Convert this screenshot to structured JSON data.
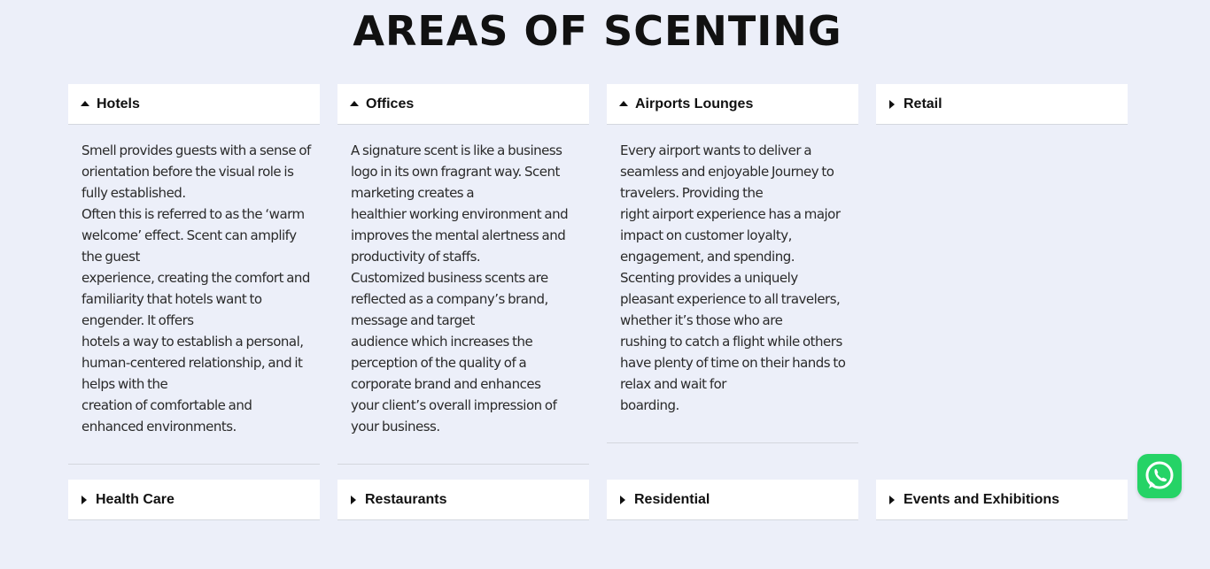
{
  "page": {
    "title": "AREAS OF SCENTING"
  },
  "tabs": [
    {
      "label": "Hotels",
      "expanded": true,
      "paragraphs": [
        "Smell provides guests with a sense of orientation before the visual role is fully established.",
        "Often this is referred to as the ‘warm welcome’ effect. Scent can amplify the guest",
        "experience, creating the comfort and familiarity that hotels want to engender. It offers",
        "hotels a way to establish a personal, human-centered relationship, and it helps with the",
        "creation of comfortable and enhanced environments."
      ]
    },
    {
      "label": "Offices",
      "expanded": true,
      "paragraphs": [
        "A signature scent is like a business logo in its own fragrant way. Scent marketing creates a",
        "healthier working environment and improves the mental alertness and productivity of staffs.",
        "Customized business scents are reflected as a company’s brand, message and target",
        "audience which increases the perception of the quality of a corporate brand and enhances",
        "your client’s overall impression of your business."
      ]
    },
    {
      "label": "Airports Lounges",
      "expanded": true,
      "paragraphs": [
        "Every airport wants to deliver a seamless and enjoyable Journey to travelers. Providing the",
        "right airport experience has a major impact on customer loyalty, engagement, and spending.",
        "Scenting provides a uniquely pleasant experience to all travelers, whether it’s those who are",
        "rushing to catch a flight while others have plenty of time on their hands to relax and wait for",
        "boarding."
      ]
    },
    {
      "label": "Retail",
      "expanded": false,
      "paragraphs": []
    },
    {
      "label": "Health Care",
      "expanded": false,
      "paragraphs": []
    },
    {
      "label": "Restaurants",
      "expanded": false,
      "paragraphs": []
    },
    {
      "label": "Residential",
      "expanded": false,
      "paragraphs": []
    },
    {
      "label": "Events and Exhibitions",
      "expanded": false,
      "paragraphs": []
    }
  ],
  "icons": {
    "expanded": "caret-up-icon",
    "collapsed": "caret-right-icon",
    "chat": "whatsapp-icon"
  },
  "colors": {
    "background": "#eceff9",
    "whatsapp": "#25d366"
  }
}
